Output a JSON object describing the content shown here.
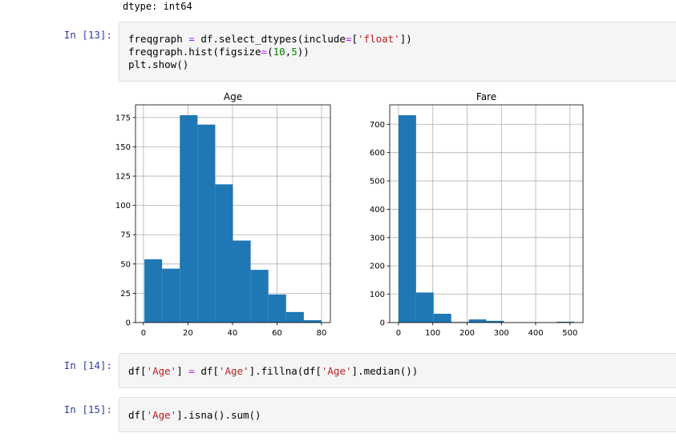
{
  "previous_output": "dtype: int64",
  "cells": [
    {
      "prompt": "In [13]:",
      "lines": [
        [
          [
            "freqgraph ",
            ""
          ],
          [
            "=",
            "op"
          ],
          [
            " df.select_dtypes(include",
            ""
          ],
          [
            "=",
            "op"
          ],
          [
            "[",
            ""
          ],
          [
            "'float'",
            "str"
          ],
          [
            "])",
            ""
          ]
        ],
        [
          [
            "freqgraph.hist(figsize",
            ""
          ],
          [
            "=",
            "op"
          ],
          [
            "(",
            ""
          ],
          [
            "10",
            "num"
          ],
          [
            ",",
            ""
          ],
          [
            "5",
            "num"
          ],
          [
            "))",
            ""
          ]
        ],
        [
          [
            "plt.show()",
            ""
          ]
        ]
      ]
    },
    {
      "prompt": "In [14]:",
      "lines": [
        [
          [
            "df[",
            ""
          ],
          [
            "'Age'",
            "str"
          ],
          [
            "] ",
            ""
          ],
          [
            "=",
            "op"
          ],
          [
            " df[",
            ""
          ],
          [
            "'Age'",
            "str"
          ],
          [
            "].fillna(df[",
            ""
          ],
          [
            "'Age'",
            "str"
          ],
          [
            "].median())",
            ""
          ]
        ]
      ]
    },
    {
      "prompt": "In [15]:",
      "lines": [
        [
          [
            "df[",
            ""
          ],
          [
            "'Age'",
            "str"
          ],
          [
            "].isna().sum()",
            ""
          ]
        ]
      ]
    }
  ],
  "chart_data": [
    {
      "type": "bar",
      "title": "Age",
      "bin_edges": [
        0.42,
        8.38,
        16.34,
        24.29,
        32.25,
        40.21,
        48.17,
        56.13,
        64.08,
        72.04,
        80.0
      ],
      "values": [
        54,
        46,
        177,
        169,
        118,
        70,
        45,
        24,
        9,
        2
      ],
      "xlim": [
        -3.56,
        83.98
      ],
      "ylim": [
        0,
        185.85
      ],
      "xticks": [
        0,
        20,
        40,
        60,
        80
      ],
      "yticks": [
        0,
        25,
        50,
        75,
        100,
        125,
        150,
        175
      ],
      "grid": true,
      "bar_color": "#1f77b4"
    },
    {
      "type": "bar",
      "title": "Fare",
      "bin_edges": [
        0,
        51.23,
        102.47,
        153.7,
        204.93,
        256.16,
        307.4,
        358.63,
        409.86,
        461.1,
        512.33
      ],
      "values": [
        732,
        106,
        31,
        2,
        11,
        6,
        0,
        0,
        0,
        3
      ],
      "xlim": [
        -25.6,
        537.9
      ],
      "ylim": [
        0,
        768.6
      ],
      "xticks": [
        0,
        100,
        200,
        300,
        400,
        500
      ],
      "yticks": [
        0,
        100,
        200,
        300,
        400,
        500,
        600,
        700
      ],
      "grid": true,
      "bar_color": "#1f77b4"
    }
  ]
}
